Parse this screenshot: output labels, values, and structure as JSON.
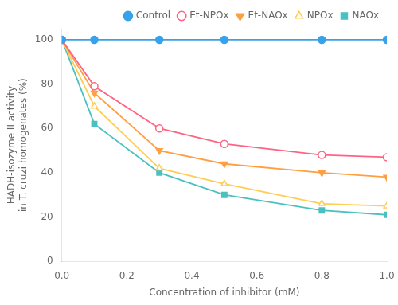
{
  "chart_data": {
    "type": "line",
    "x": [
      0.0,
      0.1,
      0.3,
      0.5,
      0.8,
      1.0
    ],
    "series": [
      {
        "name": "Control",
        "values": [
          100,
          100,
          100,
          100,
          100,
          100
        ],
        "marker": "circle-filled",
        "line_style": "solid"
      },
      {
        "name": "Et-NPOx",
        "values": [
          100,
          79,
          60,
          53,
          48,
          47
        ],
        "marker": "circle-open",
        "line_style": "solid"
      },
      {
        "name": "Et-NAOx",
        "values": [
          100,
          76,
          50,
          44,
          40,
          38
        ],
        "marker": "triangle-down-filled",
        "line_style": "solid"
      },
      {
        "name": "NPOx",
        "values": [
          100,
          70,
          42,
          35,
          26,
          25
        ],
        "marker": "triangle-up-open",
        "line_style": "solid"
      },
      {
        "name": "NAOx",
        "values": [
          100,
          62,
          40,
          30,
          23,
          21
        ],
        "marker": "square-filled",
        "line_style": "solid"
      }
    ],
    "xlabel": "Concentration of inhibitor (mM)",
    "ylabel": "HADH-isozyme II activity\nin T. cruzi homogenates (%)",
    "xlim": [
      0.0,
      1.0
    ],
    "ylim": [
      0,
      105
    ],
    "xticks": [
      {
        "value": 0.0,
        "label": "0.0"
      },
      0.2,
      0.4,
      0.6,
      0.8,
      {
        "value": 1.0,
        "label": "1.0"
      }
    ],
    "yticks": [
      0,
      20,
      40,
      60,
      80,
      100
    ],
    "legend": "upper right",
    "grid": false
  }
}
